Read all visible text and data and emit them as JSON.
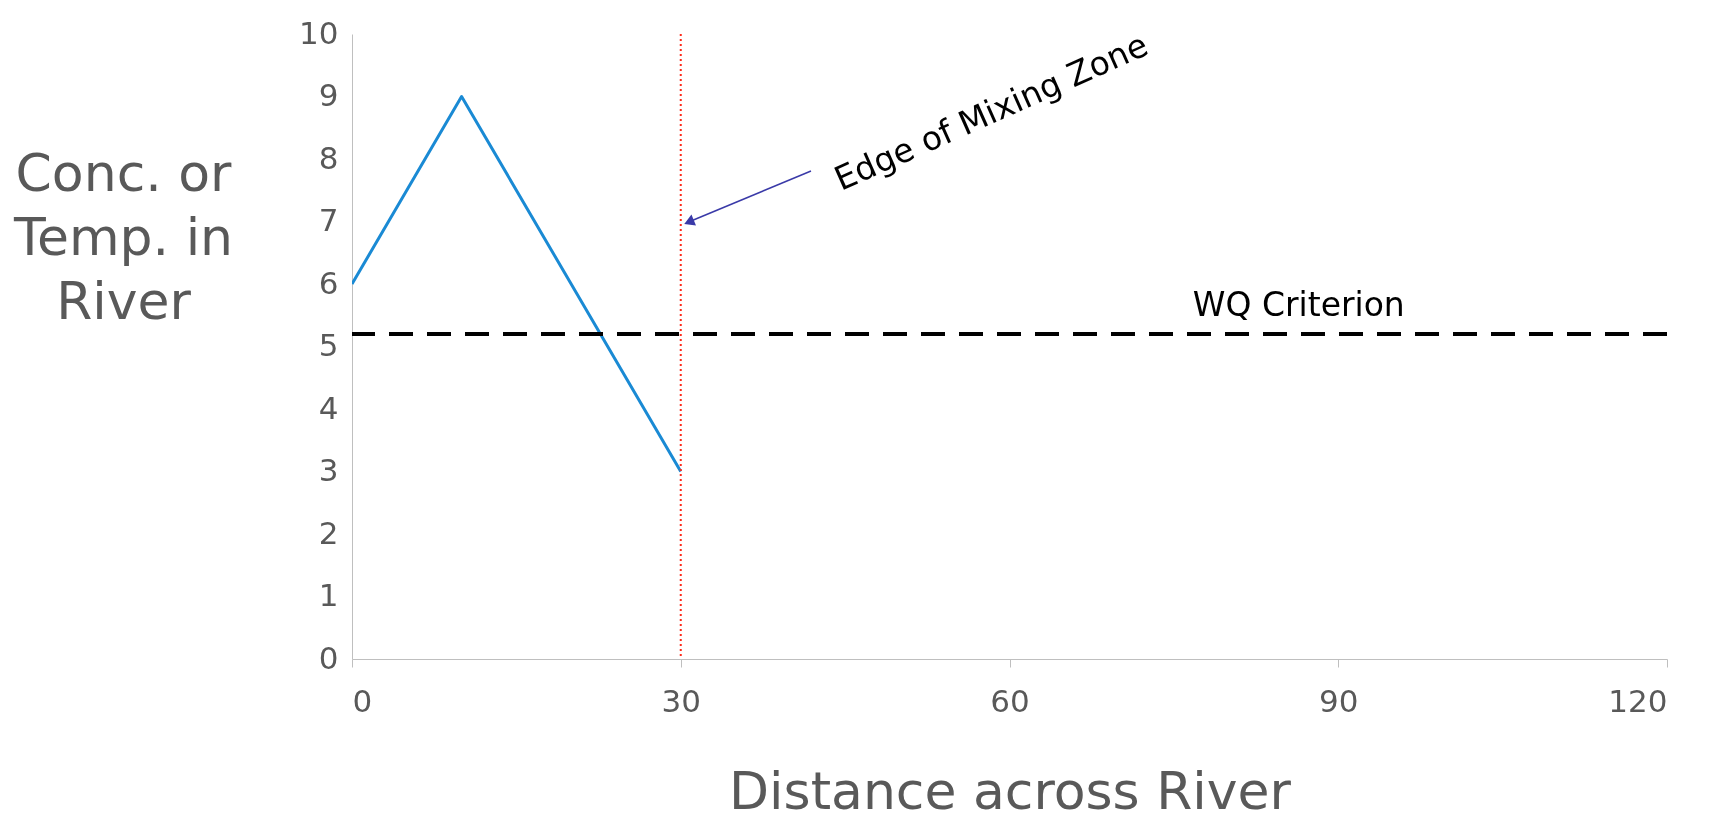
{
  "chart_data": {
    "type": "line",
    "xlabel": "Distance across River",
    "ylabel": "Conc. or Temp. in River",
    "x": [
      0,
      10,
      30
    ],
    "series": [
      {
        "color": "#1a8ad4",
        "values": [
          6,
          9,
          3
        ]
      }
    ],
    "xlim": [
      0,
      120
    ],
    "ylim": [
      0,
      10
    ],
    "xticks": [
      0,
      30,
      60,
      90,
      120
    ],
    "yticks": [
      0,
      1,
      2,
      3,
      4,
      5,
      6,
      7,
      8,
      9,
      10
    ],
    "ref_lines": [
      {
        "axis": "y",
        "value": 5.2,
        "label": "WQ Criterion",
        "color": "#000000",
        "line_style": "dashed"
      },
      {
        "axis": "x",
        "value": 30,
        "color": "#ff2a1a",
        "line_style": "dotted"
      }
    ],
    "annotations": [
      "Edge of Mixing Zone"
    ]
  }
}
